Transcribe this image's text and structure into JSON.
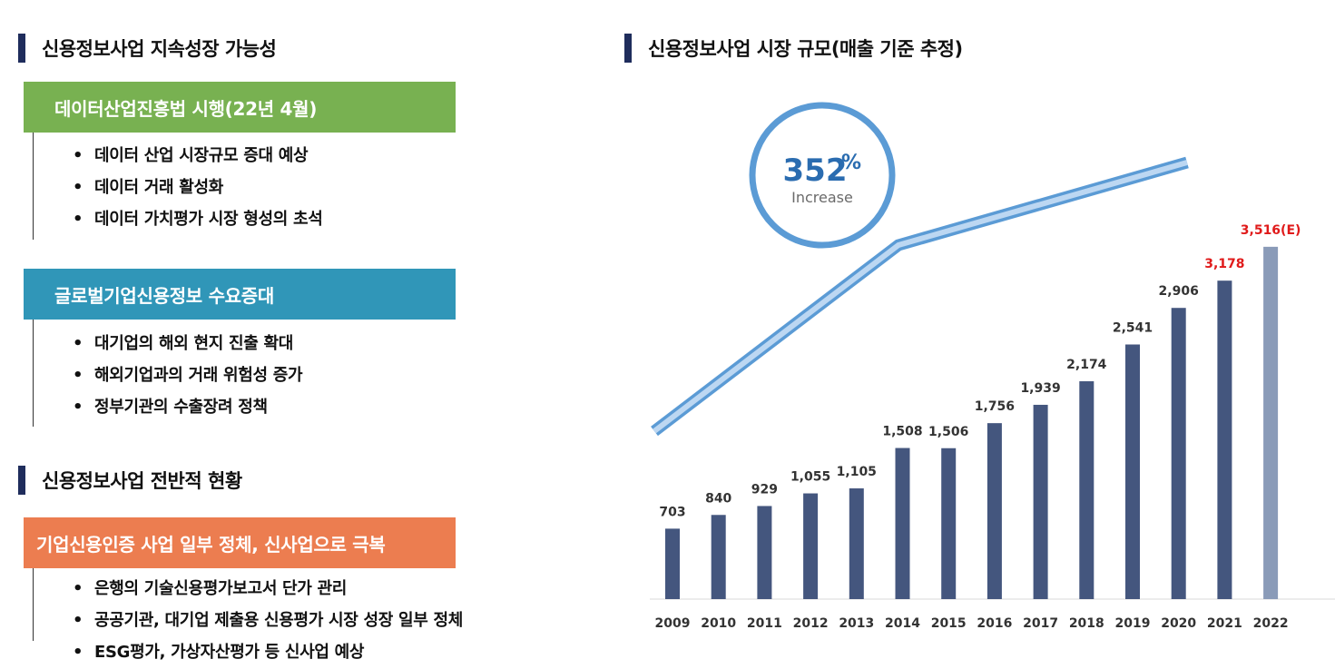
{
  "left": {
    "sections": [
      {
        "heading": "신용정보사업 지속성장 가능성",
        "groups": [
          {
            "banner": "데이터산업진흥법 시행(22년 4월)",
            "color": "#78b151",
            "bullets": [
              "데이터 산업 시장규모 증대 예상",
              "데이터 거래 활성화",
              "데이터 가치평가 시장 형성의 초석"
            ]
          },
          {
            "banner": "글로벌기업신용정보 수요증대",
            "color": "#3096b8",
            "bullets": [
              "대기업의 해외 현지 진출 확대",
              "해외기업과의 거래 위험성 증가",
              "정부기관의 수출장려 정책"
            ]
          }
        ]
      },
      {
        "heading": "신용정보사업 전반적 현황",
        "groups": [
          {
            "banner": "기업신용인증 사업 일부 정체, 신사업으로 극복",
            "color": "#ec7d50",
            "bullets": [
              "은행의 기술신용평가보고서 단가 관리",
              "공공기관, 대기업 제출용 신용평가 시장 성장 일부 정체",
              "ESG평가, 가상자산평가 등 신사업 예상"
            ]
          }
        ]
      }
    ]
  },
  "right": {
    "heading": "신용정보사업 시장 규모(매출 기준 추정)"
  },
  "chart_data": {
    "type": "bar",
    "title": "신용정보사업 시장 규모(매출 기준 추정)",
    "categories": [
      "2009",
      "2010",
      "2011",
      "2012",
      "2013",
      "2014",
      "2015",
      "2016",
      "2017",
      "2018",
      "2019",
      "2020",
      "2021",
      "2022"
    ],
    "values": [
      703,
      840,
      929,
      1055,
      1105,
      1508,
      1506,
      1756,
      1939,
      2174,
      2541,
      2906,
      3178,
      3516
    ],
    "value_labels": [
      "703",
      "840",
      "929",
      "1,055",
      "1,105",
      "1,508",
      "1,506",
      "1,756",
      "1,939",
      "2,174",
      "2,541",
      "2,906",
      "3,178",
      "3,516(E)"
    ],
    "ylim": [
      0,
      3850
    ],
    "grid": false,
    "bar_color": "#44567e",
    "estimate_bar_color": "#8a9bb8",
    "highlight_label_color": "#e01a1a",
    "highlight_indices": [
      12,
      13
    ],
    "estimate_index": 13,
    "badge": {
      "value": "352",
      "unit": "%",
      "caption": "Increase"
    },
    "trend_arrow_color": "#5b9bd5"
  }
}
